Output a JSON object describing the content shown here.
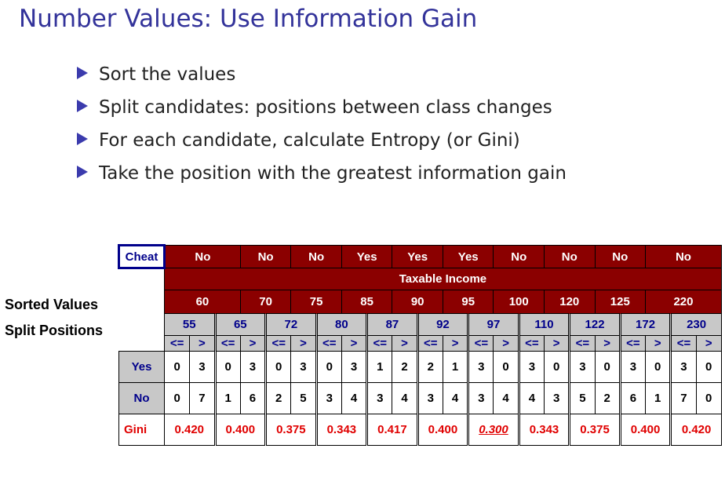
{
  "title": "Number Values: Use Information Gain",
  "bullets": [
    "Sort the values",
    "Split candidates: positions between class changes",
    "For each candidate, calculate Entropy (or Gini)",
    "Take the position with the greatest information gain"
  ],
  "side_labels": {
    "sorted_values": "Sorted Values",
    "split_positions": "Split Positions"
  },
  "table": {
    "cheat_label": "Cheat",
    "cheat_values": [
      "No",
      "No",
      "No",
      "Yes",
      "Yes",
      "Yes",
      "No",
      "No",
      "No",
      "No"
    ],
    "attribute": "Taxable Income",
    "sorted_values": [
      "60",
      "70",
      "75",
      "85",
      "90",
      "95",
      "100",
      "120",
      "125",
      "220"
    ],
    "split_positions": [
      "55",
      "65",
      "72",
      "80",
      "87",
      "92",
      "97",
      "110",
      "122",
      "172",
      "230"
    ],
    "le": "<=",
    "gt": ">",
    "yes_label": "Yes",
    "no_label": "No",
    "gini_label": "Gini",
    "yes_counts": [
      [
        "0",
        "3"
      ],
      [
        "0",
        "3"
      ],
      [
        "0",
        "3"
      ],
      [
        "0",
        "3"
      ],
      [
        "1",
        "2"
      ],
      [
        "2",
        "1"
      ],
      [
        "3",
        "0"
      ],
      [
        "3",
        "0"
      ],
      [
        "3",
        "0"
      ],
      [
        "3",
        "0"
      ],
      [
        "3",
        "0"
      ]
    ],
    "no_counts": [
      [
        "0",
        "7"
      ],
      [
        "1",
        "6"
      ],
      [
        "2",
        "5"
      ],
      [
        "3",
        "4"
      ],
      [
        "3",
        "4"
      ],
      [
        "3",
        "4"
      ],
      [
        "3",
        "4"
      ],
      [
        "4",
        "3"
      ],
      [
        "5",
        "2"
      ],
      [
        "6",
        "1"
      ],
      [
        "7",
        "0"
      ]
    ],
    "gini": [
      "0.420",
      "0.400",
      "0.375",
      "0.343",
      "0.417",
      "0.400",
      "0.300",
      "0.343",
      "0.375",
      "0.400",
      "0.420"
    ],
    "best_index": 6
  },
  "colors": {
    "title": "#33339a",
    "header_red": "#8b0000",
    "grey_cell": "#c8c8c8",
    "gini_red": "#e00000"
  }
}
